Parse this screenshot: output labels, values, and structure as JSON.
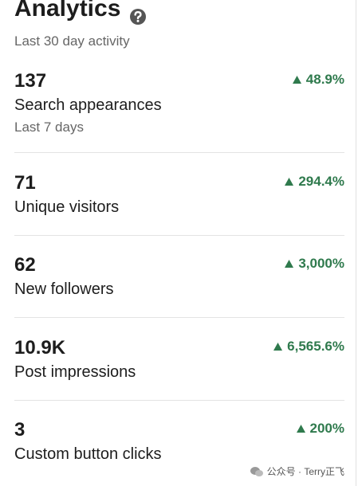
{
  "header": {
    "title": "Analytics",
    "subtitle": "Last 30 day activity"
  },
  "metrics": [
    {
      "value": "137",
      "change": "48.9%",
      "label": "Search appearances",
      "note": "Last 7 days"
    },
    {
      "value": "71",
      "change": "294.4%",
      "label": "Unique visitors"
    },
    {
      "value": "62",
      "change": "3,000%",
      "label": "New followers"
    },
    {
      "value": "10.9K",
      "change": "6,565.6%",
      "label": "Post impressions"
    },
    {
      "value": "3",
      "change": "200%",
      "label": "Custom button clicks"
    }
  ],
  "watermark": "公众号 · Terry正飞"
}
